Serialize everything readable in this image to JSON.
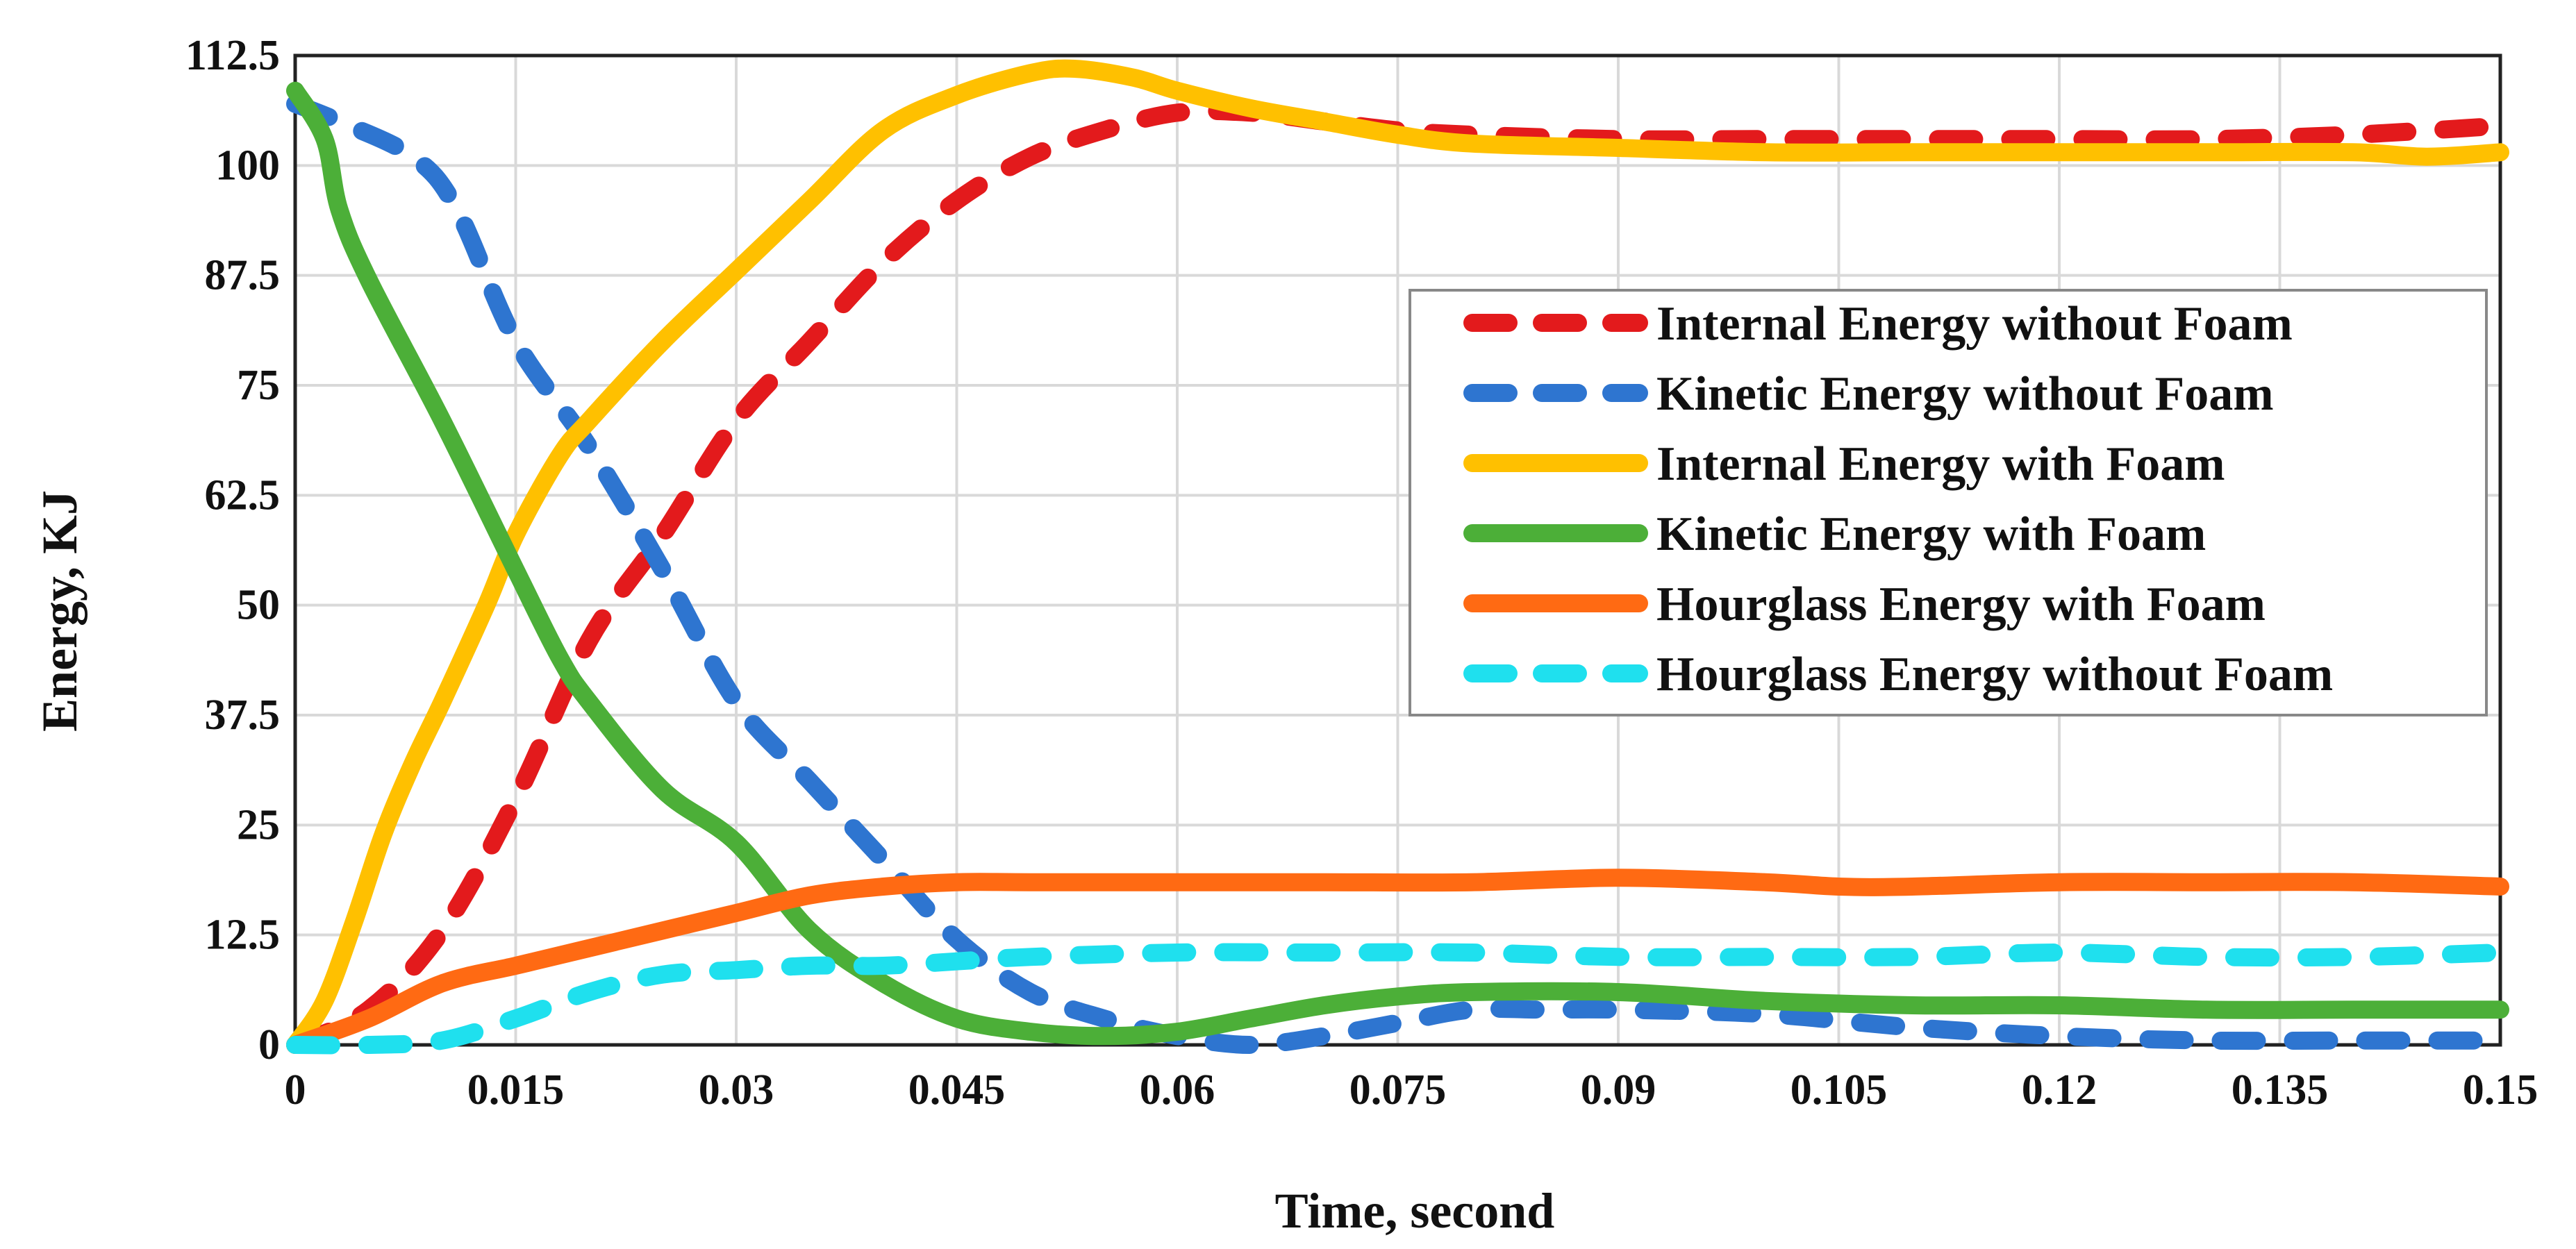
{
  "chart_data": {
    "type": "line",
    "title": "",
    "xlabel": "Time, second",
    "ylabel": "Energy, KJ",
    "xlim": [
      0,
      0.15
    ],
    "ylim": [
      0,
      112.5
    ],
    "x_ticks": [
      0,
      0.015,
      0.03,
      0.045,
      0.06,
      0.075,
      0.09,
      0.105,
      0.12,
      0.135,
      0.15
    ],
    "x_tick_labels": [
      "0",
      "0.015",
      "0.03",
      "0.045",
      "0.06",
      "0.075",
      "0.09",
      "0.105",
      "0.12",
      "0.135",
      "0.15"
    ],
    "y_ticks": [
      0,
      12.5,
      25,
      37.5,
      50,
      62.5,
      75,
      87.5,
      100,
      112.5
    ],
    "y_tick_labels": [
      "0",
      "12.5",
      "25",
      "37.5",
      "50",
      "62.5",
      "75",
      "87.5",
      "100",
      "112.5"
    ],
    "grid": true,
    "legend_position": "center-right",
    "series": [
      {
        "name": "Internal Energy without Foam",
        "color": "#e31a1c",
        "dashed": true,
        "points": [
          [
            0,
            0
          ],
          [
            0.005,
            4
          ],
          [
            0.01,
            13
          ],
          [
            0.015,
            28
          ],
          [
            0.02,
            46
          ],
          [
            0.025,
            58
          ],
          [
            0.03,
            71
          ],
          [
            0.035,
            80
          ],
          [
            0.04,
            89
          ],
          [
            0.045,
            96
          ],
          [
            0.05,
            101
          ],
          [
            0.055,
            104
          ],
          [
            0.06,
            106
          ],
          [
            0.065,
            106
          ],
          [
            0.07,
            105
          ],
          [
            0.075,
            104
          ],
          [
            0.08,
            103.5
          ],
          [
            0.09,
            103
          ],
          [
            0.1,
            103
          ],
          [
            0.11,
            103
          ],
          [
            0.12,
            103
          ],
          [
            0.13,
            103
          ],
          [
            0.14,
            103.5
          ],
          [
            0.15,
            104.5
          ]
        ]
      },
      {
        "name": "Kinetic Energy without Foam",
        "color": "#2e75d0",
        "dashed": true,
        "points": [
          [
            0,
            107
          ],
          [
            0.003,
            105
          ],
          [
            0.008,
            101
          ],
          [
            0.011,
            95
          ],
          [
            0.015,
            80
          ],
          [
            0.02,
            68
          ],
          [
            0.025,
            54
          ],
          [
            0.03,
            39
          ],
          [
            0.035,
            30
          ],
          [
            0.04,
            21
          ],
          [
            0.045,
            12
          ],
          [
            0.05,
            6
          ],
          [
            0.055,
            3
          ],
          [
            0.06,
            1
          ],
          [
            0.065,
            0
          ],
          [
            0.07,
            1
          ],
          [
            0.075,
            2.5
          ],
          [
            0.08,
            4
          ],
          [
            0.085,
            4
          ],
          [
            0.09,
            4
          ],
          [
            0.1,
            3.5
          ],
          [
            0.11,
            2
          ],
          [
            0.12,
            1
          ],
          [
            0.13,
            0.5
          ],
          [
            0.14,
            0.5
          ],
          [
            0.15,
            0.5
          ]
        ]
      },
      {
        "name": "Internal Energy with Foam",
        "color": "#ffc000",
        "dashed": false,
        "points": [
          [
            0,
            0
          ],
          [
            0.002,
            5
          ],
          [
            0.004,
            14
          ],
          [
            0.006,
            24
          ],
          [
            0.008,
            32
          ],
          [
            0.01,
            39
          ],
          [
            0.013,
            50
          ],
          [
            0.015,
            58
          ],
          [
            0.018,
            67
          ],
          [
            0.02,
            71
          ],
          [
            0.025,
            80
          ],
          [
            0.03,
            88
          ],
          [
            0.035,
            96
          ],
          [
            0.04,
            104
          ],
          [
            0.045,
            108
          ],
          [
            0.05,
            110.5
          ],
          [
            0.053,
            111
          ],
          [
            0.057,
            110
          ],
          [
            0.06,
            108.5
          ],
          [
            0.065,
            106.5
          ],
          [
            0.07,
            105
          ],
          [
            0.075,
            103.5
          ],
          [
            0.08,
            102.5
          ],
          [
            0.09,
            102
          ],
          [
            0.1,
            101.5
          ],
          [
            0.11,
            101.5
          ],
          [
            0.12,
            101.5
          ],
          [
            0.13,
            101.5
          ],
          [
            0.14,
            101.5
          ],
          [
            0.145,
            101
          ],
          [
            0.15,
            101.5
          ]
        ]
      },
      {
        "name": "Kinetic Energy with Foam",
        "color": "#4caf38",
        "dashed": false,
        "points": [
          [
            0,
            108.5
          ],
          [
            0.002,
            103
          ],
          [
            0.003,
            95
          ],
          [
            0.005,
            87
          ],
          [
            0.01,
            71
          ],
          [
            0.015,
            54
          ],
          [
            0.018,
            44
          ],
          [
            0.02,
            39
          ],
          [
            0.025,
            29
          ],
          [
            0.03,
            23
          ],
          [
            0.035,
            13
          ],
          [
            0.04,
            7
          ],
          [
            0.045,
            3
          ],
          [
            0.05,
            1.5
          ],
          [
            0.055,
            1
          ],
          [
            0.06,
            1.5
          ],
          [
            0.065,
            3
          ],
          [
            0.07,
            4.5
          ],
          [
            0.075,
            5.5
          ],
          [
            0.08,
            6
          ],
          [
            0.09,
            6
          ],
          [
            0.1,
            5
          ],
          [
            0.11,
            4.5
          ],
          [
            0.12,
            4.5
          ],
          [
            0.13,
            4
          ],
          [
            0.14,
            4
          ],
          [
            0.15,
            4
          ]
        ]
      },
      {
        "name": "Hourglass Energy with Foam",
        "color": "#ff6a13",
        "dashed": false,
        "points": [
          [
            0,
            0
          ],
          [
            0.005,
            3
          ],
          [
            0.01,
            7
          ],
          [
            0.015,
            9
          ],
          [
            0.02,
            11
          ],
          [
            0.025,
            13
          ],
          [
            0.03,
            15
          ],
          [
            0.035,
            17
          ],
          [
            0.04,
            18
          ],
          [
            0.045,
            18.5
          ],
          [
            0.05,
            18.5
          ],
          [
            0.06,
            18.5
          ],
          [
            0.07,
            18.5
          ],
          [
            0.08,
            18.5
          ],
          [
            0.09,
            19
          ],
          [
            0.1,
            18.5
          ],
          [
            0.105,
            18
          ],
          [
            0.11,
            18
          ],
          [
            0.12,
            18.5
          ],
          [
            0.13,
            18.5
          ],
          [
            0.14,
            18.5
          ],
          [
            0.15,
            18
          ]
        ]
      },
      {
        "name": "Hourglass Energy without Foam",
        "color": "#1fe0ee",
        "dashed": true,
        "points": [
          [
            0,
            0
          ],
          [
            0.005,
            0
          ],
          [
            0.01,
            0.5
          ],
          [
            0.015,
            3
          ],
          [
            0.02,
            6
          ],
          [
            0.025,
            8
          ],
          [
            0.03,
            8.5
          ],
          [
            0.035,
            9
          ],
          [
            0.04,
            9
          ],
          [
            0.045,
            9.5
          ],
          [
            0.05,
            10
          ],
          [
            0.06,
            10.5
          ],
          [
            0.07,
            10.5
          ],
          [
            0.08,
            10.5
          ],
          [
            0.09,
            10
          ],
          [
            0.1,
            10
          ],
          [
            0.11,
            10
          ],
          [
            0.12,
            10.5
          ],
          [
            0.13,
            10
          ],
          [
            0.14,
            10
          ],
          [
            0.15,
            10.5
          ]
        ]
      }
    ]
  }
}
